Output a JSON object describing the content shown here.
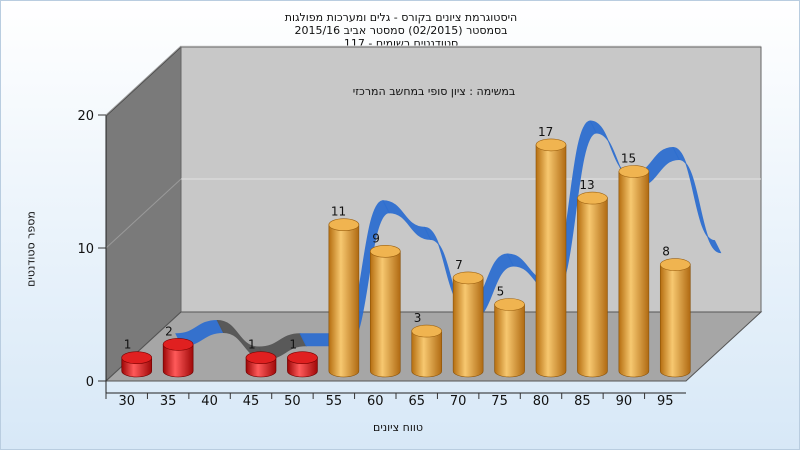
{
  "chart_data": {
    "type": "bar",
    "title_lines": [
      "היסטוגרמת ציונים בקורס - גלים ומערכות מפולגות",
      "בסמסטר  (02/2015)  סמסטר אביב 2015/16",
      "סטודנטים רשומים - 117"
    ],
    "subtitle": "במשימה : ציון סופי במחשב המרכזי",
    "xlabel": "טווח ציונים",
    "ylabel": "מספר סטודנטים",
    "categories": [
      "30",
      "35",
      "40",
      "45",
      "50",
      "55",
      "60",
      "65",
      "70",
      "75",
      "80",
      "85",
      "90",
      "95"
    ],
    "values": [
      1,
      2,
      0,
      1,
      1,
      11,
      9,
      3,
      7,
      5,
      17,
      13,
      15,
      8
    ],
    "yticks": [
      "0",
      "10",
      "20"
    ],
    "ylim": [
      0,
      20
    ],
    "fail_threshold": 55,
    "colors": {
      "fail": "#dd1111",
      "pass": "#e8a030",
      "line": "#2f6fd0",
      "line_low": "#555555",
      "back_wall": "#c8c8c8",
      "side_wall": "#7a7a7a",
      "floor": "#a6a6a6"
    }
  }
}
